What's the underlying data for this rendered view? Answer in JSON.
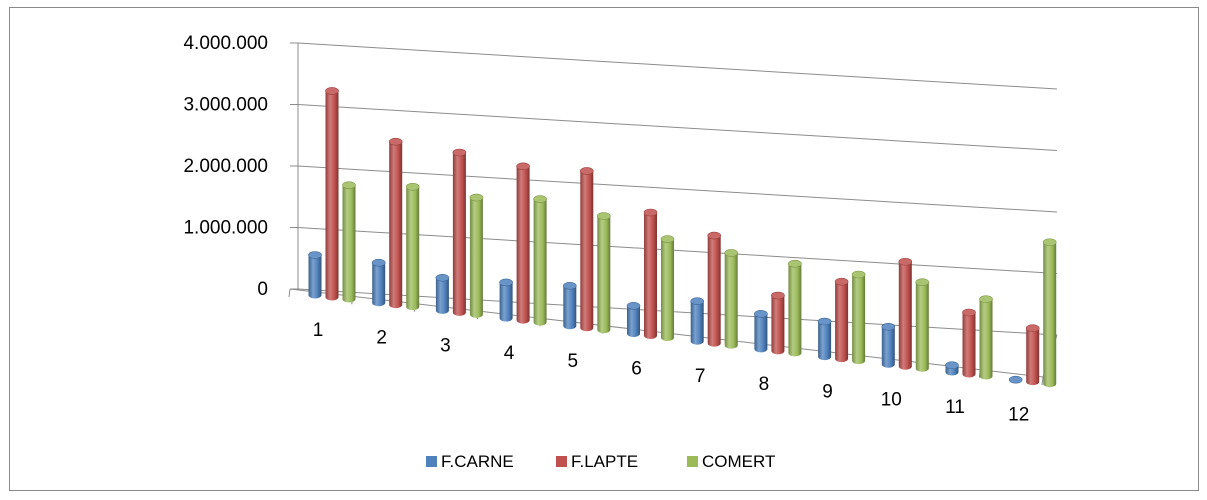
{
  "chart_data": {
    "type": "bar",
    "subtype": "3d-clustered-column-cylinder",
    "title": "",
    "xlabel": "",
    "ylabel": "",
    "categories": [
      "1",
      "2",
      "3",
      "4",
      "5",
      "6",
      "7",
      "8",
      "9",
      "10",
      "11",
      "12"
    ],
    "series": [
      {
        "name": "F.CARNE",
        "color": "#4f81bd",
        "values": [
          650000,
          650000,
          530000,
          580000,
          650000,
          450000,
          650000,
          570000,
          570000,
          610000,
          110000,
          0
        ]
      },
      {
        "name": "F.LAPTE",
        "color": "#c0504d",
        "values": [
          3350000,
          2650000,
          2600000,
          2500000,
          2550000,
          2000000,
          1750000,
          900000,
          1250000,
          1700000,
          1000000,
          870000
        ]
      },
      {
        "name": "COMERT",
        "color": "#9bbb59",
        "values": [
          1850000,
          1950000,
          1900000,
          2000000,
          1850000,
          1600000,
          1500000,
          1450000,
          1400000,
          1400000,
          1250000,
          2300000
        ]
      }
    ],
    "ylim": [
      0,
      4000000
    ],
    "yticks": [
      "0",
      "1.000.000",
      "2.000.000",
      "3.000.000",
      "4.000.000"
    ],
    "grid": true,
    "legend_position": "bottom"
  }
}
